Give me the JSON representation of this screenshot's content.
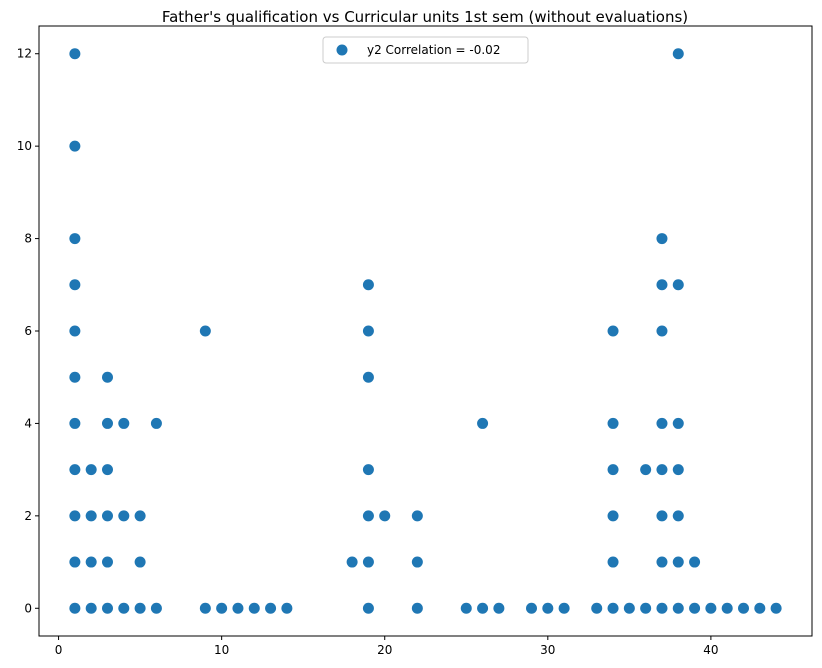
{
  "chart_data": {
    "type": "scatter",
    "title": "Father's qualification vs Curricular units 1st sem (without evaluations)",
    "xlabel": "",
    "ylabel": "",
    "xlim": [
      -1.2,
      46.2
    ],
    "ylim": [
      -0.6,
      12.6
    ],
    "x_ticks": [
      0,
      10,
      20,
      30,
      40
    ],
    "y_ticks": [
      0,
      2,
      4,
      6,
      8,
      10,
      12
    ],
    "grid": false,
    "legend_position": "top-center",
    "color": "#1f77b4",
    "series": [
      {
        "name": "y2 Correlation = -0.02",
        "points": [
          [
            1,
            0
          ],
          [
            1,
            1
          ],
          [
            1,
            2
          ],
          [
            1,
            3
          ],
          [
            1,
            4
          ],
          [
            1,
            5
          ],
          [
            1,
            6
          ],
          [
            1,
            7
          ],
          [
            1,
            8
          ],
          [
            1,
            10
          ],
          [
            1,
            12
          ],
          [
            2,
            0
          ],
          [
            2,
            1
          ],
          [
            2,
            2
          ],
          [
            2,
            3
          ],
          [
            3,
            0
          ],
          [
            3,
            1
          ],
          [
            3,
            2
          ],
          [
            3,
            3
          ],
          [
            3,
            4
          ],
          [
            3,
            5
          ],
          [
            4,
            0
          ],
          [
            4,
            2
          ],
          [
            4,
            4
          ],
          [
            5,
            0
          ],
          [
            5,
            1
          ],
          [
            5,
            2
          ],
          [
            6,
            0
          ],
          [
            6,
            4
          ],
          [
            9,
            0
          ],
          [
            9,
            6
          ],
          [
            10,
            0
          ],
          [
            11,
            0
          ],
          [
            12,
            0
          ],
          [
            13,
            0
          ],
          [
            14,
            0
          ],
          [
            18,
            1
          ],
          [
            19,
            0
          ],
          [
            19,
            1
          ],
          [
            19,
            2
          ],
          [
            19,
            3
          ],
          [
            19,
            5
          ],
          [
            19,
            6
          ],
          [
            19,
            7
          ],
          [
            20,
            2
          ],
          [
            22,
            0
          ],
          [
            22,
            1
          ],
          [
            22,
            2
          ],
          [
            25,
            0
          ],
          [
            26,
            0
          ],
          [
            26,
            4
          ],
          [
            27,
            0
          ],
          [
            29,
            0
          ],
          [
            30,
            0
          ],
          [
            31,
            0
          ],
          [
            33,
            0
          ],
          [
            34,
            0
          ],
          [
            34,
            1
          ],
          [
            34,
            2
          ],
          [
            34,
            3
          ],
          [
            34,
            4
          ],
          [
            34,
            6
          ],
          [
            35,
            0
          ],
          [
            36,
            0
          ],
          [
            36,
            3
          ],
          [
            37,
            0
          ],
          [
            37,
            1
          ],
          [
            37,
            2
          ],
          [
            37,
            3
          ],
          [
            37,
            4
          ],
          [
            37,
            6
          ],
          [
            37,
            7
          ],
          [
            37,
            8
          ],
          [
            38,
            0
          ],
          [
            38,
            1
          ],
          [
            38,
            2
          ],
          [
            38,
            3
          ],
          [
            38,
            4
          ],
          [
            38,
            7
          ],
          [
            38,
            12
          ],
          [
            39,
            0
          ],
          [
            39,
            1
          ],
          [
            40,
            0
          ],
          [
            41,
            0
          ],
          [
            42,
            0
          ],
          [
            43,
            0
          ],
          [
            44,
            0
          ]
        ]
      }
    ]
  }
}
